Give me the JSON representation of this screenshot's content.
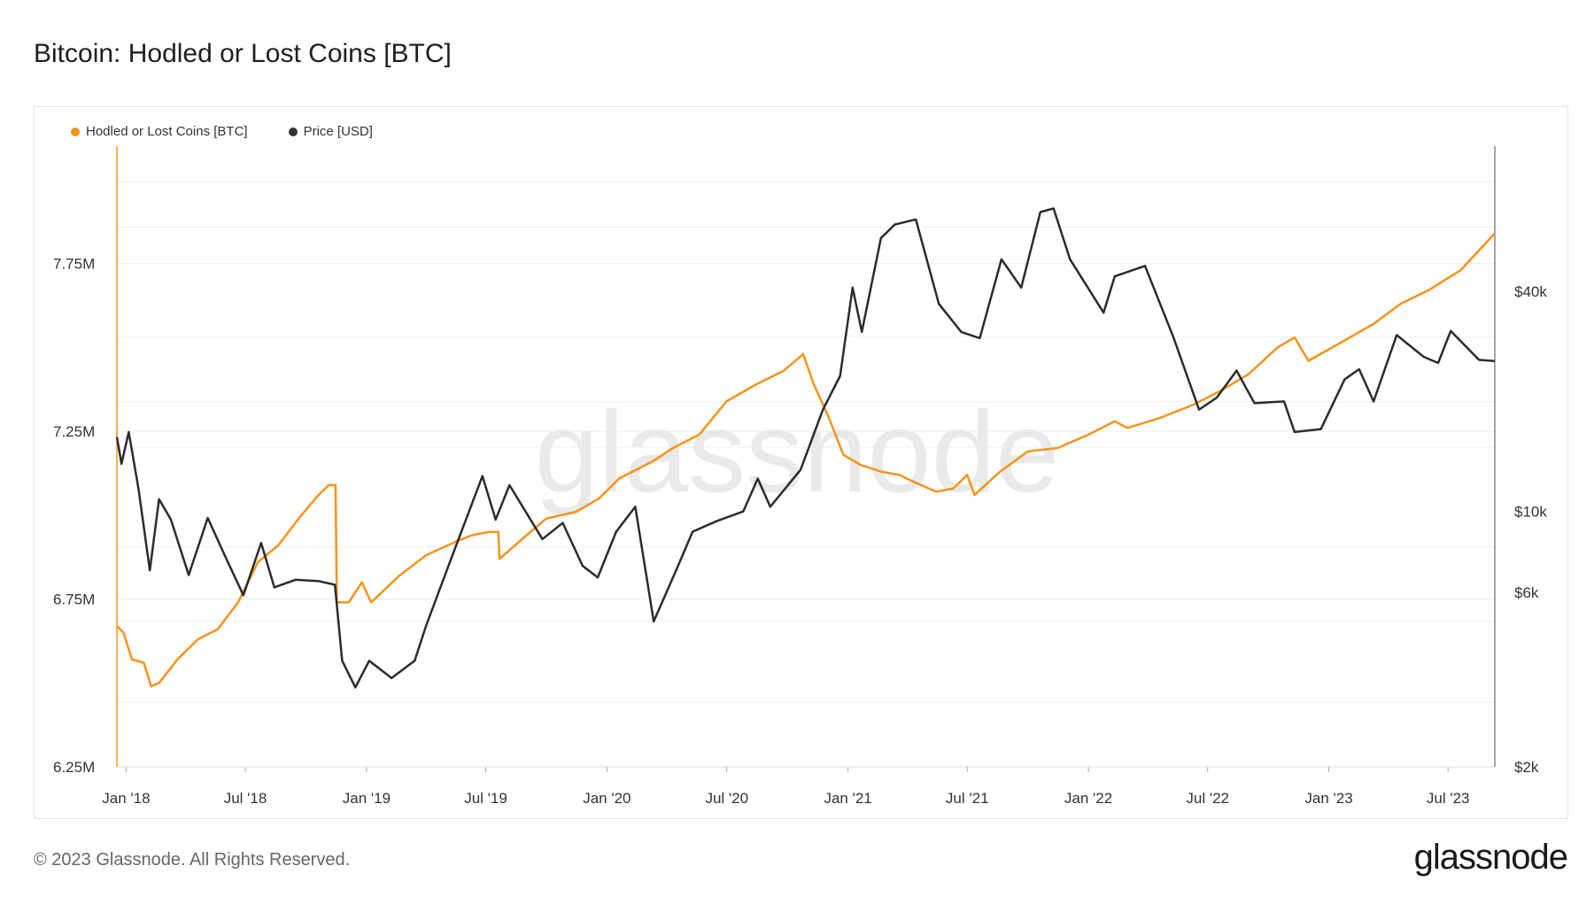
{
  "title": "Bitcoin: Hodled or Lost Coins [BTC]",
  "footer": "© 2023 Glassnode. All Rights Reserved.",
  "brand": "glassnode",
  "watermark": "glassnode",
  "colors": {
    "hodled": "#F7931A",
    "price": "#2b2b2b",
    "grid": "#eeeeee",
    "axis": "#aaaaaa"
  },
  "legend": [
    {
      "label": "Hodled or Lost Coins [BTC]",
      "color": "#F7931A"
    },
    {
      "label": "Price [USD]",
      "color": "#333333"
    }
  ],
  "chart_data": {
    "type": "line",
    "title": "Bitcoin: Hodled or Lost Coins [BTC]",
    "x_ticks": [
      "Jan '18",
      "Jul '18",
      "Jan '19",
      "Jul '19",
      "Jan '20",
      "Jul '20",
      "Jan '21",
      "Jul '21",
      "Jan '22",
      "Jul '22",
      "Jan '23",
      "Jul '23"
    ],
    "y_left": {
      "ticks": [
        "6.25M",
        "6.75M",
        "7.25M",
        "7.75M"
      ],
      "range": [
        6.25,
        8.1
      ],
      "unit": "M BTC"
    },
    "y_right": {
      "ticks": [
        "$2k",
        "$6k",
        "$10k",
        "$40k"
      ],
      "tick_values": [
        2000,
        6000,
        10000,
        40000
      ],
      "scale": "log",
      "range": [
        2000,
        100000
      ]
    },
    "x_range": [
      "2017-12-18",
      "2023-09-10"
    ],
    "grid": true,
    "legend_position": "top-left",
    "series": [
      {
        "name": "Hodled or Lost Coins [BTC]",
        "axis": "left",
        "points": [
          [
            "2017-12-18",
            6.67
          ],
          [
            "2017-12-28",
            6.65
          ],
          [
            "2018-01-10",
            6.57
          ],
          [
            "2018-01-28",
            6.56
          ],
          [
            "2018-02-08",
            6.49
          ],
          [
            "2018-02-20",
            6.5
          ],
          [
            "2018-03-20",
            6.57
          ],
          [
            "2018-04-20",
            6.63
          ],
          [
            "2018-05-20",
            6.66
          ],
          [
            "2018-06-20",
            6.74
          ],
          [
            "2018-07-20",
            6.86
          ],
          [
            "2018-08-20",
            6.91
          ],
          [
            "2018-09-20",
            6.99
          ],
          [
            "2018-10-20",
            7.06
          ],
          [
            "2018-11-05",
            7.09
          ],
          [
            "2018-11-15",
            7.09
          ],
          [
            "2018-11-17",
            6.74
          ],
          [
            "2018-12-05",
            6.74
          ],
          [
            "2018-12-25",
            6.8
          ],
          [
            "2019-01-08",
            6.74
          ],
          [
            "2019-02-20",
            6.82
          ],
          [
            "2019-04-01",
            6.88
          ],
          [
            "2019-05-15",
            6.92
          ],
          [
            "2019-06-10",
            6.94
          ],
          [
            "2019-07-05",
            6.95
          ],
          [
            "2019-07-20",
            6.95
          ],
          [
            "2019-07-22",
            6.87
          ],
          [
            "2019-09-01",
            6.94
          ],
          [
            "2019-10-01",
            6.99
          ],
          [
            "2019-11-15",
            7.01
          ],
          [
            "2019-12-20",
            7.05
          ],
          [
            "2020-01-20",
            7.11
          ],
          [
            "2020-03-10",
            7.16
          ],
          [
            "2020-04-10",
            7.2
          ],
          [
            "2020-05-20",
            7.24
          ],
          [
            "2020-07-01",
            7.34
          ],
          [
            "2020-08-15",
            7.39
          ],
          [
            "2020-09-25",
            7.43
          ],
          [
            "2020-10-25",
            7.48
          ],
          [
            "2020-11-10",
            7.39
          ],
          [
            "2020-12-01",
            7.3
          ],
          [
            "2020-12-25",
            7.18
          ],
          [
            "2021-01-20",
            7.15
          ],
          [
            "2021-02-20",
            7.13
          ],
          [
            "2021-03-20",
            7.12
          ],
          [
            "2021-04-10",
            7.1
          ],
          [
            "2021-05-15",
            7.07
          ],
          [
            "2021-06-10",
            7.08
          ],
          [
            "2021-07-01",
            7.12
          ],
          [
            "2021-07-12",
            7.06
          ],
          [
            "2021-08-20",
            7.13
          ],
          [
            "2021-10-01",
            7.19
          ],
          [
            "2021-11-15",
            7.2
          ],
          [
            "2022-01-01",
            7.24
          ],
          [
            "2022-02-10",
            7.28
          ],
          [
            "2022-03-01",
            7.26
          ],
          [
            "2022-04-20",
            7.29
          ],
          [
            "2022-06-10",
            7.33
          ],
          [
            "2022-07-20",
            7.37
          ],
          [
            "2022-09-01",
            7.42
          ],
          [
            "2022-10-15",
            7.5
          ],
          [
            "2022-11-10",
            7.53
          ],
          [
            "2022-12-01",
            7.46
          ],
          [
            "2023-01-15",
            7.51
          ],
          [
            "2023-03-10",
            7.57
          ],
          [
            "2023-04-20",
            7.63
          ],
          [
            "2023-06-01",
            7.67
          ],
          [
            "2023-07-20",
            7.73
          ],
          [
            "2023-09-10",
            7.84
          ]
        ]
      },
      {
        "name": "Price [USD]",
        "axis": "right",
        "points": [
          [
            "2017-12-18",
            16000
          ],
          [
            "2017-12-25",
            13500
          ],
          [
            "2018-01-05",
            16500
          ],
          [
            "2018-01-20",
            11500
          ],
          [
            "2018-02-06",
            6900
          ],
          [
            "2018-02-20",
            10800
          ],
          [
            "2018-03-10",
            9500
          ],
          [
            "2018-04-06",
            6700
          ],
          [
            "2018-05-05",
            9600
          ],
          [
            "2018-06-01",
            7500
          ],
          [
            "2018-06-28",
            5900
          ],
          [
            "2018-07-25",
            8200
          ],
          [
            "2018-08-14",
            6200
          ],
          [
            "2018-09-15",
            6500
          ],
          [
            "2018-10-20",
            6450
          ],
          [
            "2018-11-14",
            6300
          ],
          [
            "2018-11-25",
            3900
          ],
          [
            "2018-12-15",
            3300
          ],
          [
            "2019-01-05",
            3900
          ],
          [
            "2019-02-08",
            3500
          ],
          [
            "2019-03-15",
            3900
          ],
          [
            "2019-04-02",
            4900
          ],
          [
            "2019-05-14",
            7800
          ],
          [
            "2019-06-26",
            12500
          ],
          [
            "2019-07-16",
            9500
          ],
          [
            "2019-08-06",
            11800
          ],
          [
            "2019-09-25",
            8400
          ],
          [
            "2019-10-26",
            9300
          ],
          [
            "2019-11-25",
            7100
          ],
          [
            "2019-12-18",
            6600
          ],
          [
            "2020-01-15",
            8800
          ],
          [
            "2020-02-13",
            10300
          ],
          [
            "2020-03-12",
            5000
          ],
          [
            "2020-04-15",
            6900
          ],
          [
            "2020-05-10",
            8800
          ],
          [
            "2020-06-15",
            9400
          ],
          [
            "2020-07-26",
            10000
          ],
          [
            "2020-08-17",
            12300
          ],
          [
            "2020-09-05",
            10300
          ],
          [
            "2020-10-21",
            13000
          ],
          [
            "2020-11-24",
            19000
          ],
          [
            "2020-12-20",
            23500
          ],
          [
            "2021-01-08",
            41000
          ],
          [
            "2021-01-22",
            31000
          ],
          [
            "2021-02-20",
            56000
          ],
          [
            "2021-03-13",
            61000
          ],
          [
            "2021-04-14",
            63000
          ],
          [
            "2021-05-19",
            37000
          ],
          [
            "2021-06-22",
            31000
          ],
          [
            "2021-07-20",
            29800
          ],
          [
            "2021-08-22",
            49000
          ],
          [
            "2021-09-21",
            41000
          ],
          [
            "2021-10-20",
            66000
          ],
          [
            "2021-11-09",
            67500
          ],
          [
            "2021-12-04",
            49000
          ],
          [
            "2022-01-24",
            35000
          ],
          [
            "2022-02-10",
            44000
          ],
          [
            "2022-03-28",
            47000
          ],
          [
            "2022-05-10",
            30000
          ],
          [
            "2022-06-18",
            19000
          ],
          [
            "2022-07-15",
            20500
          ],
          [
            "2022-08-14",
            24300
          ],
          [
            "2022-09-10",
            19800
          ],
          [
            "2022-10-25",
            20000
          ],
          [
            "2022-11-10",
            16500
          ],
          [
            "2022-12-20",
            16800
          ],
          [
            "2023-01-25",
            23000
          ],
          [
            "2023-02-16",
            24500
          ],
          [
            "2023-03-10",
            20000
          ],
          [
            "2023-04-14",
            30400
          ],
          [
            "2023-05-25",
            26500
          ],
          [
            "2023-06-16",
            25500
          ],
          [
            "2023-07-05",
            31200
          ],
          [
            "2023-08-17",
            26000
          ],
          [
            "2023-09-10",
            25800
          ]
        ]
      }
    ]
  }
}
